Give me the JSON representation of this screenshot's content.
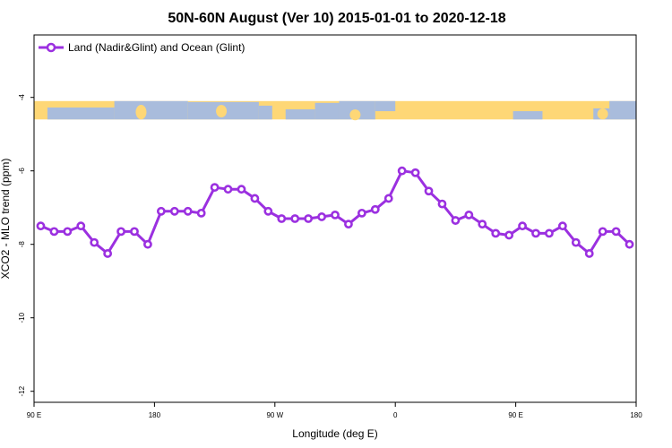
{
  "chart_data": {
    "type": "line",
    "title": "50N-60N August (Ver 10)   2015-01-01 to 2020-12-18",
    "xlabel": "Longitude (deg E)",
    "ylabel": "XCO2 - MLO trend (ppm)",
    "xlim": [
      90,
      540
    ],
    "ylim": [
      -12.3,
      -2.3
    ],
    "x_ticks": [
      {
        "value": 90,
        "label": "90 E"
      },
      {
        "value": 180,
        "label": "180"
      },
      {
        "value": 270,
        "label": "90 W"
      },
      {
        "value": 360,
        "label": "0"
      },
      {
        "value": 450,
        "label": "90 E"
      },
      {
        "value": 540,
        "label": "180"
      }
    ],
    "y_ticks": [
      {
        "value": -4,
        "label": "-4"
      },
      {
        "value": -6,
        "label": "-6"
      },
      {
        "value": -8,
        "label": "-8"
      },
      {
        "value": -10,
        "label": "-10"
      },
      {
        "value": -12,
        "label": "-12"
      }
    ],
    "x_axis_note": "longitude axis runs from 90 E eastward across the date line to 180 (values beyond 180 continue eastward)",
    "series": [
      {
        "name": "Land (Nadir&Glint) and Ocean (Glint)",
        "color": "#9b30e0",
        "x": [
          95,
          105,
          115,
          125,
          135,
          145,
          155,
          165,
          175,
          185,
          195,
          205,
          215,
          225,
          235,
          245,
          255,
          265,
          275,
          285,
          295,
          305,
          315,
          325,
          335,
          345,
          355,
          365,
          375,
          385,
          395,
          405,
          415,
          425,
          435,
          445,
          455,
          465,
          475,
          485,
          495,
          505,
          515,
          525,
          535
        ],
        "y": [
          -7.5,
          -7.65,
          -7.65,
          -7.5,
          -7.95,
          -8.25,
          -7.65,
          -7.65,
          -8.0,
          -7.1,
          -7.1,
          -7.1,
          -7.15,
          -6.45,
          -6.5,
          -6.5,
          -6.75,
          -7.1,
          -7.3,
          -7.3,
          -7.3,
          -7.25,
          -7.2,
          -7.45,
          -7.15,
          -7.05,
          -6.75,
          -6.0,
          -6.05,
          -6.55,
          -6.9,
          -7.35,
          -7.2,
          -7.45,
          -7.7,
          -7.75,
          -7.5,
          -7.7,
          -7.7,
          -7.5,
          -7.95,
          -8.25,
          -7.65,
          -7.65,
          -8.0
        ]
      }
    ],
    "legend_position": "top-left",
    "grid": false,
    "colors": {
      "ocean": "#a9bcdc",
      "land": "#fed776",
      "line": "#9b30e0"
    },
    "map_strip": {
      "lat_range": [
        50,
        60
      ],
      "y_range_ppm": [
        -4.1,
        -4.6
      ]
    }
  }
}
